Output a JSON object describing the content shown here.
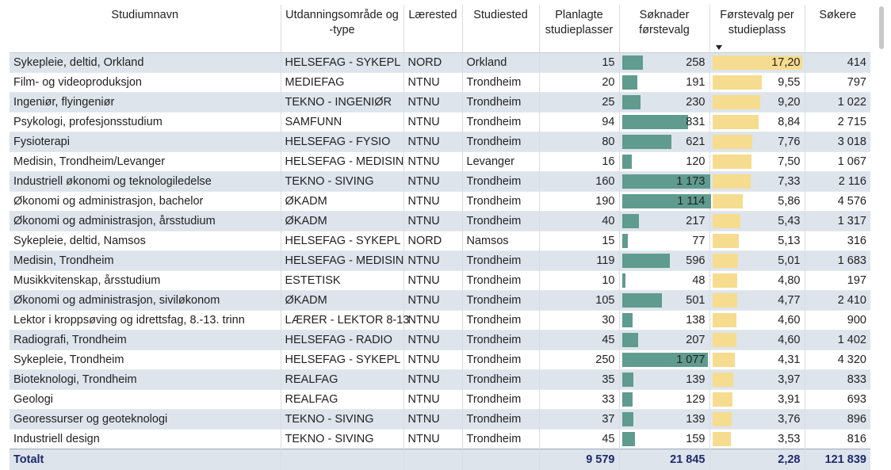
{
  "headers": {
    "name": "Studiumnavn",
    "area": "Utdanningsområde og -type",
    "inst": "Lærested",
    "place": "Studiested",
    "planned": "Planlagte studieplasser",
    "first": "Søknader førstevalg",
    "ratio": "Førstevalg per studieplass",
    "applicants": "Søkere"
  },
  "rows": [
    {
      "name": "Sykepleie, deltid, Orkland",
      "area": "HELSEFAG - SYKEPL",
      "inst": "NORD",
      "place": "Orkland",
      "planned": "15",
      "first": "258",
      "first_v": 258,
      "ratio": "17,20",
      "ratio_v": 17.2,
      "applicants": "414"
    },
    {
      "name": "Film- og videoproduksjon",
      "area": "MEDIEFAG",
      "inst": "NTNU",
      "place": "Trondheim",
      "planned": "20",
      "first": "191",
      "first_v": 191,
      "ratio": "9,55",
      "ratio_v": 9.55,
      "applicants": "797"
    },
    {
      "name": "Ingeniør, flyingeniør",
      "area": "TEKNO - INGENIØR",
      "inst": "NTNU",
      "place": "Trondheim",
      "planned": "25",
      "first": "230",
      "first_v": 230,
      "ratio": "9,20",
      "ratio_v": 9.2,
      "applicants": "1 022"
    },
    {
      "name": "Psykologi, profesjonsstudium",
      "area": "SAMFUNN",
      "inst": "NTNU",
      "place": "Trondheim",
      "planned": "94",
      "first": "831",
      "first_v": 831,
      "ratio": "8,84",
      "ratio_v": 8.84,
      "applicants": "2 715"
    },
    {
      "name": "Fysioterapi",
      "area": "HELSEFAG - FYSIO",
      "inst": "NTNU",
      "place": "Trondheim",
      "planned": "80",
      "first": "621",
      "first_v": 621,
      "ratio": "7,76",
      "ratio_v": 7.76,
      "applicants": "3 018"
    },
    {
      "name": "Medisin, Trondheim/Levanger",
      "area": "HELSEFAG - MEDISIN",
      "inst": "NTNU",
      "place": "Levanger",
      "planned": "16",
      "first": "120",
      "first_v": 120,
      "ratio": "7,50",
      "ratio_v": 7.5,
      "applicants": "1 067"
    },
    {
      "name": "Industriell økonomi og teknologiledelse",
      "area": "TEKNO - SIVING",
      "inst": "NTNU",
      "place": "Trondheim",
      "planned": "160",
      "first": "1 173",
      "first_v": 1173,
      "ratio": "7,33",
      "ratio_v": 7.33,
      "applicants": "2 116"
    },
    {
      "name": "Økonomi og administrasjon, bachelor",
      "area": "ØKADM",
      "inst": "NTNU",
      "place": "Trondheim",
      "planned": "190",
      "first": "1 114",
      "first_v": 1114,
      "ratio": "5,86",
      "ratio_v": 5.86,
      "applicants": "4 576"
    },
    {
      "name": "Økonomi og administrasjon, årsstudium",
      "area": "ØKADM",
      "inst": "NTNU",
      "place": "Trondheim",
      "planned": "40",
      "first": "217",
      "first_v": 217,
      "ratio": "5,43",
      "ratio_v": 5.43,
      "applicants": "1 317"
    },
    {
      "name": "Sykepleie, deltid, Namsos",
      "area": "HELSEFAG - SYKEPL",
      "inst": "NORD",
      "place": "Namsos",
      "planned": "15",
      "first": "77",
      "first_v": 77,
      "ratio": "5,13",
      "ratio_v": 5.13,
      "applicants": "316"
    },
    {
      "name": "Medisin, Trondheim",
      "area": "HELSEFAG - MEDISIN",
      "inst": "NTNU",
      "place": "Trondheim",
      "planned": "119",
      "first": "596",
      "first_v": 596,
      "ratio": "5,01",
      "ratio_v": 5.01,
      "applicants": "1 683"
    },
    {
      "name": "Musikkvitenskap, årsstudium",
      "area": "ESTETISK",
      "inst": "NTNU",
      "place": "Trondheim",
      "planned": "10",
      "first": "48",
      "first_v": 48,
      "ratio": "4,80",
      "ratio_v": 4.8,
      "applicants": "197"
    },
    {
      "name": "Økonomi og administrasjon, siviløkonom",
      "area": "ØKADM",
      "inst": "NTNU",
      "place": "Trondheim",
      "planned": "105",
      "first": "501",
      "first_v": 501,
      "ratio": "4,77",
      "ratio_v": 4.77,
      "applicants": "2 410"
    },
    {
      "name": "Lektor i kroppsøving og idrettsfag, 8.-13. trinn",
      "area": "LÆRER - LEKTOR 8-13",
      "inst": "NTNU",
      "place": "Trondheim",
      "planned": "30",
      "first": "138",
      "first_v": 138,
      "ratio": "4,60",
      "ratio_v": 4.6,
      "applicants": "900"
    },
    {
      "name": "Radiografi, Trondheim",
      "area": "HELSEFAG - RADIO",
      "inst": "NTNU",
      "place": "Trondheim",
      "planned": "45",
      "first": "207",
      "first_v": 207,
      "ratio": "4,60",
      "ratio_v": 4.6,
      "applicants": "1 402"
    },
    {
      "name": "Sykepleie, Trondheim",
      "area": "HELSEFAG - SYKEPL",
      "inst": "NTNU",
      "place": "Trondheim",
      "planned": "250",
      "first": "1 077",
      "first_v": 1077,
      "ratio": "4,31",
      "ratio_v": 4.31,
      "applicants": "4 320"
    },
    {
      "name": "Bioteknologi, Trondheim",
      "area": "REALFAG",
      "inst": "NTNU",
      "place": "Trondheim",
      "planned": "35",
      "first": "139",
      "first_v": 139,
      "ratio": "3,97",
      "ratio_v": 3.97,
      "applicants": "833"
    },
    {
      "name": "Geologi",
      "area": "REALFAG",
      "inst": "NTNU",
      "place": "Trondheim",
      "planned": "33",
      "first": "129",
      "first_v": 129,
      "ratio": "3,91",
      "ratio_v": 3.91,
      "applicants": "693"
    },
    {
      "name": "Georessurser og geoteknologi",
      "area": "TEKNO - SIVING",
      "inst": "NTNU",
      "place": "Trondheim",
      "planned": "37",
      "first": "139",
      "first_v": 139,
      "ratio": "3,76",
      "ratio_v": 3.76,
      "applicants": "896"
    },
    {
      "name": "Industriell design",
      "area": "TEKNO - SIVING",
      "inst": "NTNU",
      "place": "Trondheim",
      "planned": "45",
      "first": "159",
      "first_v": 159,
      "ratio": "3,53",
      "ratio_v": 3.53,
      "applicants": "816"
    }
  ],
  "total": {
    "label": "Totalt",
    "planned": "9 579",
    "first": "21 845",
    "ratio": "2,28",
    "applicants": "121 839"
  },
  "colors": {
    "first_bar": "#5f9b8e",
    "ratio_bar": "#f6dc8f",
    "row_band": "#dde4ec",
    "total_text": "#1f2a6b"
  },
  "sort": {
    "column": "ratio",
    "direction": "descending"
  }
}
